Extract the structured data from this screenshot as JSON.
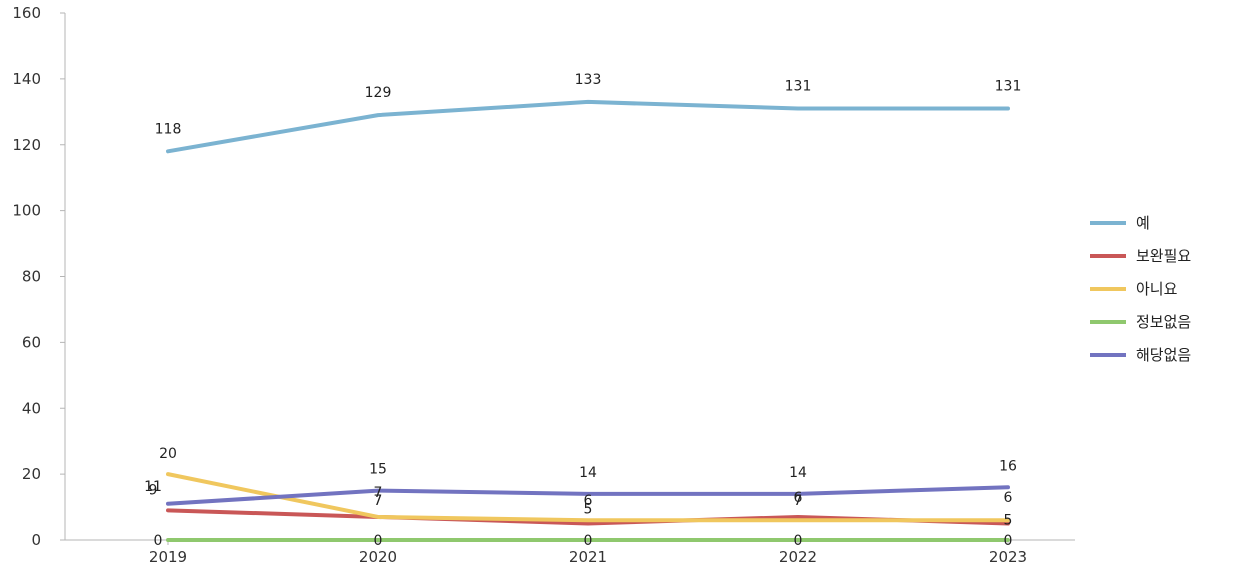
{
  "chart_data": {
    "type": "line",
    "x": [
      "2019",
      "2020",
      "2021",
      "2022",
      "2023"
    ],
    "ylim": [
      0,
      160
    ],
    "yticks": [
      0,
      20,
      40,
      60,
      80,
      100,
      120,
      140,
      160
    ],
    "grid": false,
    "legend_position": "right",
    "series": [
      {
        "name": "예",
        "color": "#7bb3d1",
        "values": [
          118,
          129,
          133,
          131,
          131
        ]
      },
      {
        "name": "보완필요",
        "color": "#c95757",
        "values": [
          9,
          7,
          5,
          7,
          5
        ]
      },
      {
        "name": "아니요",
        "color": "#f0c75e",
        "values": [
          20,
          7,
          6,
          6,
          6
        ]
      },
      {
        "name": "정보없음",
        "color": "#8fc86e",
        "values": [
          0,
          0,
          0,
          0,
          0
        ]
      },
      {
        "name": "해당없음",
        "color": "#7273c0",
        "values": [
          11,
          15,
          14,
          14,
          16
        ]
      }
    ]
  }
}
